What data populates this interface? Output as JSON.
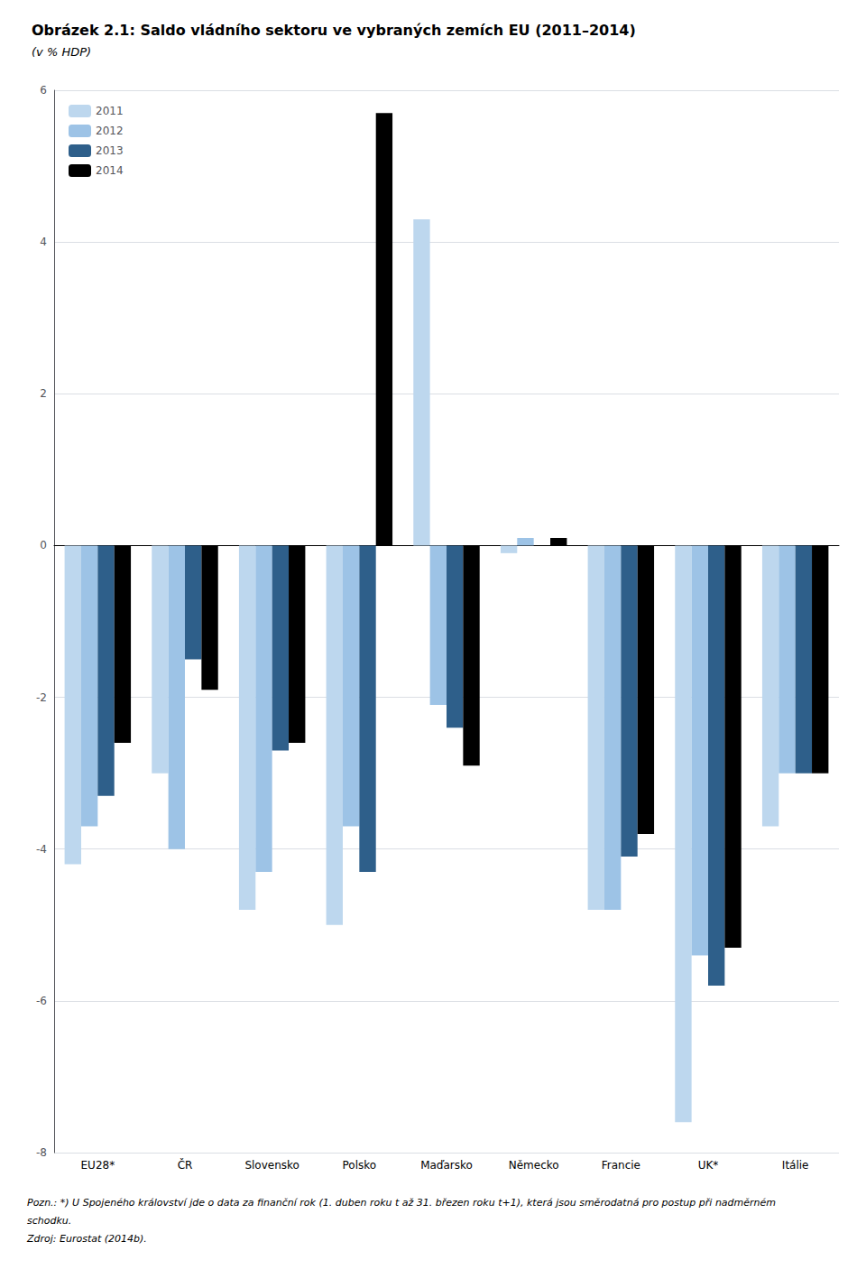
{
  "chart_data": {
    "type": "bar",
    "title": "Obrázek 2.1: Saldo vládního sektoru ve vybraných zemích EU (2011–2014)",
    "subtitle": "(v % HDP)",
    "categories": [
      "EU28*",
      "ČR",
      "Slovensko",
      "Polsko",
      "Maďarsko",
      "Německo",
      "Francie",
      "UK*",
      "Itálie"
    ],
    "series": [
      {
        "name": "2011",
        "color": "#bdd7ee",
        "values": [
          -4.2,
          -3.0,
          -4.8,
          -5.0,
          4.3,
          -0.1,
          -4.8,
          -7.6,
          -3.7
        ]
      },
      {
        "name": "2012",
        "color": "#9dc3e6",
        "values": [
          -3.7,
          -4.0,
          -4.3,
          -3.7,
          -2.1,
          0.1,
          -4.8,
          -5.4,
          -3.0
        ]
      },
      {
        "name": "2013",
        "color": "#2e5f8a",
        "values": [
          -3.3,
          -1.5,
          -2.7,
          -4.3,
          -2.4,
          0.0,
          -4.1,
          -5.8,
          -3.0
        ]
      },
      {
        "name": "2014",
        "color": "#000000",
        "values": [
          -2.6,
          -1.9,
          -2.6,
          5.7,
          -2.9,
          0.1,
          -3.8,
          -5.3,
          -3.0
        ]
      }
    ],
    "ylim": [
      -8,
      6
    ],
    "yticks": [
      -8,
      -6,
      -4,
      -2,
      0,
      2,
      4,
      6
    ],
    "grid": true,
    "legend": "upper left",
    "annotations": [
      "Pozn.: *) U Spojeného království jde o data za finanční rok (1. duben roku t až 31. březen roku t+1), která jsou směrodatná pro postup při nadměrném",
      "schodku.",
      "Zdroj: Eurostat (2014b)."
    ]
  }
}
